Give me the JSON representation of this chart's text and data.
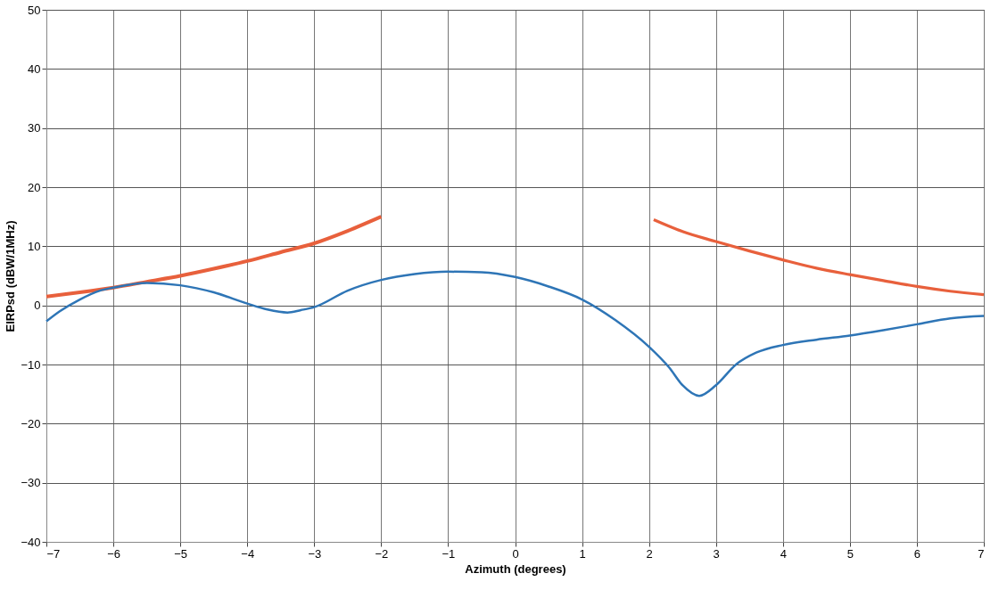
{
  "chart_data": {
    "type": "line",
    "xlabel": "Azimuth (degrees)",
    "ylabel": "EIRPsd (dBW/1MHz)",
    "xlim": [
      -7,
      7
    ],
    "xticks": [
      -7,
      -6,
      -5,
      -4,
      -3,
      -2,
      -1,
      0,
      1,
      2,
      3,
      4,
      5,
      6,
      7
    ],
    "ylim": [
      -40,
      50
    ],
    "yticks": [
      -40,
      -30,
      -20,
      -10,
      0,
      10,
      20,
      30,
      40,
      50
    ],
    "grid": true,
    "marker": "none",
    "line_style": "solid",
    "series": [
      {
        "color": "#e8603c",
        "x": [
          -7,
          -6.5,
          -6,
          -5.5,
          -5,
          -4.5,
          -4,
          -3.5,
          -3,
          -2.5,
          -2
        ],
        "values": [
          1.5,
          2.2,
          3,
          4,
          5,
          6.2,
          7.5,
          9,
          10.5,
          12.6,
          15
        ]
      },
      {
        "color": "#e8603c",
        "x": [
          2.07,
          2.5,
          3,
          3.5,
          4,
          4.5,
          5,
          5.5,
          6,
          6.5,
          7
        ],
        "values": [
          14.5,
          12.5,
          10.8,
          9.2,
          7.7,
          6.3,
          5.2,
          4.2,
          3.2,
          2.4,
          1.8
        ]
      },
      {
        "color": "#2e75b6",
        "x": [
          -7,
          -6.8,
          -6.5,
          -6.2,
          -6,
          -5.5,
          -5,
          -4.5,
          -4,
          -3.7,
          -3.4,
          -3.2,
          -3,
          -2.5,
          -2,
          -1.5,
          -1,
          -0.5,
          0,
          0.5,
          1,
          1.5,
          2,
          2.3,
          2.5,
          2.75,
          3,
          3.3,
          3.6,
          4,
          4.5,
          5,
          5.5,
          6,
          6.5,
          7
        ],
        "values": [
          -2.7,
          -1,
          1,
          2.5,
          3,
          3.8,
          3.4,
          2.2,
          0.3,
          -0.7,
          -1.2,
          -0.8,
          -0.3,
          2.5,
          4.3,
          5.3,
          5.7,
          5.6,
          4.8,
          3.2,
          1,
          -2.5,
          -7,
          -10.5,
          -13.5,
          -15.3,
          -13.5,
          -10,
          -8,
          -6.7,
          -5.8,
          -5.1,
          -4.2,
          -3.2,
          -2.2,
          -1.8
        ]
      }
    ]
  }
}
